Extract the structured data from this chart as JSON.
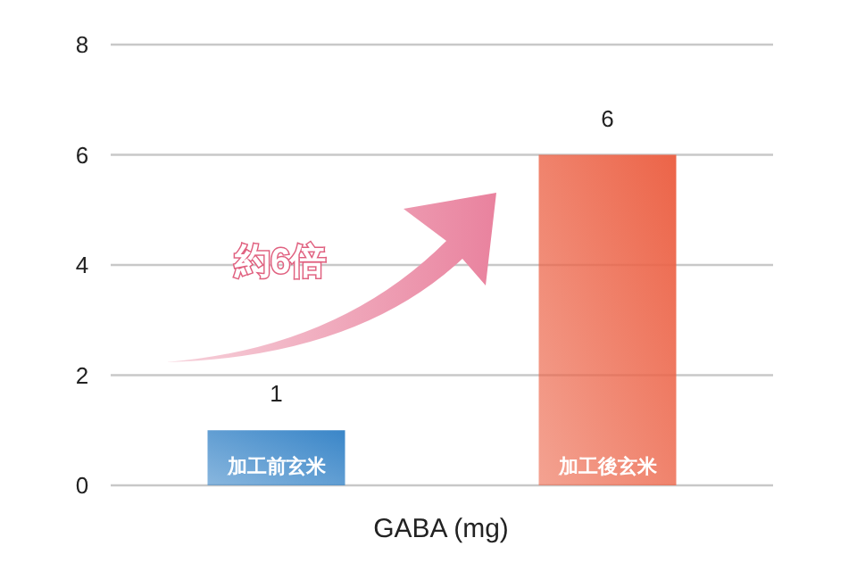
{
  "chart_data": {
    "type": "bar",
    "categories": [
      "加工前玄米",
      "加工後玄米"
    ],
    "values": [
      1,
      6
    ],
    "colors": [
      "#3a86c8",
      "#ec6448"
    ],
    "xlabel": "GABA (mg)",
    "ylim": [
      0,
      8
    ],
    "yticks": [
      0,
      2,
      4,
      6,
      8
    ],
    "grid": "y",
    "data_labels": true,
    "annotations": [
      "約6倍"
    ]
  }
}
